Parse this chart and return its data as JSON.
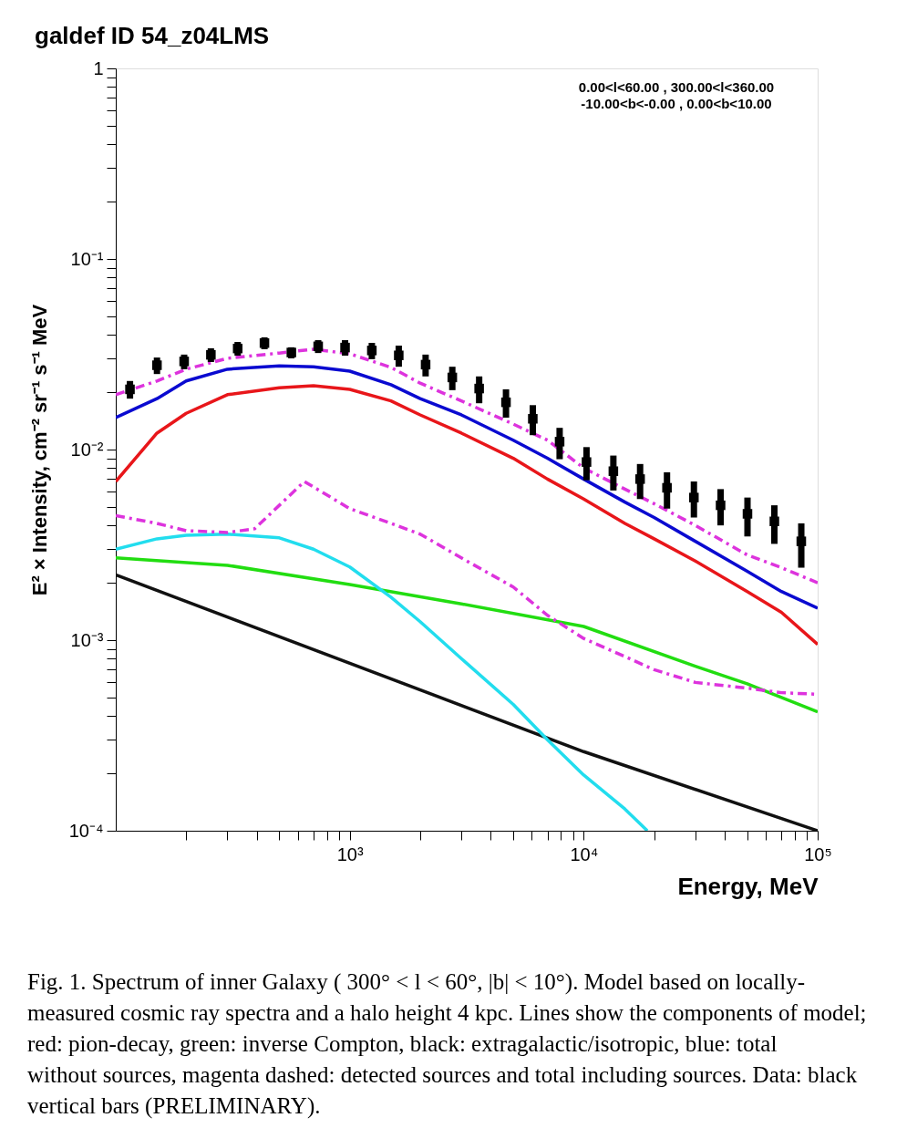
{
  "chart_data": {
    "type": "line",
    "title": "galdef ID 54_z04LMS",
    "xlabel": "Energy, MeV",
    "ylabel": "E² × Intensity, cm⁻² sr⁻¹ s⁻¹ MeV",
    "xlim": [
      100,
      100000
    ],
    "ylim": [
      0.0001,
      1
    ],
    "log": "xy",
    "xticks": [
      {
        "value": 200,
        "label": null
      },
      {
        "value": 300,
        "label": null
      },
      {
        "value": 400,
        "label": null
      },
      {
        "value": 500,
        "label": null
      },
      {
        "value": 600,
        "label": null
      },
      {
        "value": 700,
        "label": null
      },
      {
        "value": 800,
        "label": null
      },
      {
        "value": 900,
        "label": null
      },
      {
        "value": 1000,
        "label": "10³"
      },
      {
        "value": 2000,
        "label": null
      },
      {
        "value": 3000,
        "label": null
      },
      {
        "value": 4000,
        "label": null
      },
      {
        "value": 5000,
        "label": null
      },
      {
        "value": 6000,
        "label": null
      },
      {
        "value": 7000,
        "label": null
      },
      {
        "value": 8000,
        "label": null
      },
      {
        "value": 9000,
        "label": null
      },
      {
        "value": 10000,
        "label": "10⁴"
      },
      {
        "value": 20000,
        "label": null
      },
      {
        "value": 30000,
        "label": null
      },
      {
        "value": 40000,
        "label": null
      },
      {
        "value": 50000,
        "label": null
      },
      {
        "value": 60000,
        "label": null
      },
      {
        "value": 70000,
        "label": null
      },
      {
        "value": 80000,
        "label": null
      },
      {
        "value": 90000,
        "label": null
      },
      {
        "value": 100000,
        "label": "10⁵"
      }
    ],
    "yticks": [
      {
        "value": 0.0001,
        "label": "10⁻⁴"
      },
      {
        "value": 0.0002,
        "label": null
      },
      {
        "value": 0.0003,
        "label": null
      },
      {
        "value": 0.0004,
        "label": null
      },
      {
        "value": 0.0005,
        "label": null
      },
      {
        "value": 0.0006,
        "label": null
      },
      {
        "value": 0.0007,
        "label": null
      },
      {
        "value": 0.0008,
        "label": null
      },
      {
        "value": 0.0009,
        "label": null
      },
      {
        "value": 0.001,
        "label": "10⁻³"
      },
      {
        "value": 0.002,
        "label": null
      },
      {
        "value": 0.003,
        "label": null
      },
      {
        "value": 0.004,
        "label": null
      },
      {
        "value": 0.005,
        "label": null
      },
      {
        "value": 0.006,
        "label": null
      },
      {
        "value": 0.007,
        "label": null
      },
      {
        "value": 0.008,
        "label": null
      },
      {
        "value": 0.009,
        "label": null
      },
      {
        "value": 0.01,
        "label": "10⁻²"
      },
      {
        "value": 0.02,
        "label": null
      },
      {
        "value": 0.03,
        "label": null
      },
      {
        "value": 0.04,
        "label": null
      },
      {
        "value": 0.05,
        "label": null
      },
      {
        "value": 0.06,
        "label": null
      },
      {
        "value": 0.07,
        "label": null
      },
      {
        "value": 0.08,
        "label": null
      },
      {
        "value": 0.09,
        "label": null
      },
      {
        "value": 0.1,
        "label": "10⁻¹"
      },
      {
        "value": 0.2,
        "label": null
      },
      {
        "value": 0.3,
        "label": null
      },
      {
        "value": 0.4,
        "label": null
      },
      {
        "value": 0.5,
        "label": null
      },
      {
        "value": 0.6,
        "label": null
      },
      {
        "value": 0.7,
        "label": null
      },
      {
        "value": 0.8,
        "label": null
      },
      {
        "value": 0.9,
        "label": null
      },
      1
    ],
    "series": [
      {
        "type": "line",
        "color": "#111111",
        "line_style": "solid",
        "x": [
          100,
          10000,
          100000
        ],
        "values": [
          0.0022,
          0.00026,
          0.0001
        ]
      },
      {
        "type": "line",
        "color": "#22dd11",
        "line_style": "solid",
        "x": [
          100,
          300,
          1000,
          3000,
          10000,
          30000,
          50000,
          100000
        ],
        "values": [
          0.0027,
          0.00247,
          0.00196,
          0.00155,
          0.00118,
          0.00073,
          0.00059,
          0.00042
        ]
      },
      {
        "type": "line",
        "color": "#22ddee",
        "line_style": "solid",
        "x": [
          100,
          150,
          200,
          300,
          500,
          700,
          1000,
          1500,
          2000,
          3000,
          5000,
          7000,
          10000,
          15000,
          18700
        ],
        "values": [
          0.003,
          0.0034,
          0.00355,
          0.0036,
          0.00344,
          0.003,
          0.00242,
          0.00168,
          0.00125,
          0.0008,
          0.00046,
          0.0003,
          0.000196,
          0.00013,
          0.0001
        ]
      },
      {
        "type": "line",
        "color": "#dd33dd",
        "line_style": "dashed",
        "x": [
          100,
          150,
          200,
          300,
          392,
          640,
          1000,
          1500,
          2000,
          3000,
          5000,
          7000,
          10000,
          15000,
          20000,
          30000,
          50000,
          70000,
          100000
        ],
        "values": [
          0.0045,
          0.0041,
          0.00375,
          0.00367,
          0.00384,
          0.0068,
          0.0049,
          0.0041,
          0.0036,
          0.0027,
          0.0019,
          0.00135,
          0.00102,
          0.00082,
          0.0007,
          0.0006,
          0.00056,
          0.00053,
          0.00052
        ]
      },
      {
        "type": "line",
        "color": "#e8161a",
        "line_style": "solid",
        "x": [
          100,
          150,
          200,
          300,
          500,
          700,
          1000,
          1500,
          2000,
          3000,
          5000,
          7000,
          10000,
          15000,
          20000,
          30000,
          50000,
          70000,
          100000
        ],
        "values": [
          0.0068,
          0.0122,
          0.0155,
          0.0194,
          0.0211,
          0.0216,
          0.0207,
          0.018,
          0.0152,
          0.0122,
          0.009,
          0.007,
          0.0055,
          0.0041,
          0.0034,
          0.0026,
          0.0018,
          0.0014,
          0.00095
        ]
      },
      {
        "type": "line",
        "color": "#0a0ad0",
        "line_style": "solid",
        "x": [
          100,
          150,
          200,
          300,
          500,
          700,
          1000,
          1500,
          2000,
          3000,
          5000,
          7000,
          10000,
          15000,
          20000,
          30000,
          50000,
          70000,
          100000
        ],
        "values": [
          0.0147,
          0.0185,
          0.0229,
          0.0264,
          0.0275,
          0.0272,
          0.0258,
          0.0219,
          0.0185,
          0.0152,
          0.0112,
          0.009,
          0.007,
          0.0053,
          0.0044,
          0.0033,
          0.0023,
          0.0018,
          0.00147
        ]
      },
      {
        "type": "line",
        "color": "#dd33dd",
        "line_style": "dashed",
        "x": [
          100,
          150,
          200,
          300,
          500,
          700,
          1000,
          1500,
          2000,
          3000,
          5000,
          7000,
          10000,
          15000,
          20000,
          30000,
          50000,
          70000,
          100000
        ],
        "values": [
          0.0194,
          0.0229,
          0.0264,
          0.0301,
          0.0321,
          0.0336,
          0.0318,
          0.027,
          0.0223,
          0.018,
          0.0136,
          0.0112,
          0.008,
          0.0062,
          0.0052,
          0.004,
          0.0028,
          0.0024,
          0.002
        ]
      },
      {
        "type": "scatter",
        "color": "#000000",
        "marker": "square",
        "x": [
          115,
          150,
          196,
          255,
          332,
          432,
          563,
          733,
          955,
          1243,
          1620,
          2110,
          2744,
          3574,
          4654,
          6060,
          7890,
          10280,
          13390,
          17420,
          22700,
          29580,
          38460,
          50120,
          65310,
          85110
        ],
        "values": [
          0.0207,
          0.0277,
          0.029,
          0.0314,
          0.0339,
          0.0362,
          0.0323,
          0.0348,
          0.0343,
          0.0331,
          0.0312,
          0.0279,
          0.0239,
          0.0209,
          0.0177,
          0.0145,
          0.011,
          0.0086,
          0.0077,
          0.007,
          0.0063,
          0.0056,
          0.0051,
          0.0046,
          0.0042,
          0.0033
        ],
        "errors": [
          [
            0.0185,
            0.0229
          ],
          [
            0.0249,
            0.0304
          ],
          [
            0.0264,
            0.0315
          ],
          [
            0.0288,
            0.034
          ],
          [
            0.0311,
            0.0367
          ],
          [
            0.0336,
            0.0388
          ],
          [
            0.0301,
            0.0344
          ],
          [
            0.0321,
            0.0375
          ],
          [
            0.0311,
            0.0375
          ],
          [
            0.0298,
            0.0363
          ],
          [
            0.0272,
            0.0351
          ],
          [
            0.0242,
            0.0315
          ],
          [
            0.0205,
            0.0272
          ],
          [
            0.0175,
            0.0242
          ],
          [
            0.0147,
            0.0207
          ],
          [
            0.0119,
            0.0171
          ],
          [
            0.0089,
            0.013
          ],
          [
            0.0069,
            0.0103
          ],
          [
            0.0061,
            0.0093
          ],
          [
            0.0055,
            0.0084
          ],
          [
            0.0049,
            0.0076
          ],
          [
            0.0044,
            0.0068
          ],
          [
            0.004,
            0.0062
          ],
          [
            0.0035,
            0.0056
          ],
          [
            0.0032,
            0.0051
          ],
          [
            0.0024,
            0.0041
          ]
        ]
      }
    ],
    "annotations": [
      "0.00<l<60.00 , 300.00<l<360.00",
      "-10.00<b<-0.00 ,  0.00<b<10.00",
      "Fig. 1.  Spectrum of inner Galaxy ( 300° < l < 60°, |b| < 10°). Model based on locally-measured cosmic ray spectra and a halo height 4 kpc. Lines show the components of model; red: pion-decay, green: inverse Compton, black: extragalactic/isotropic, blue: total without sources, magenta dashed: detected sources and total including sources. Data: black vertical bars (PRELIMINARY)."
    ]
  }
}
